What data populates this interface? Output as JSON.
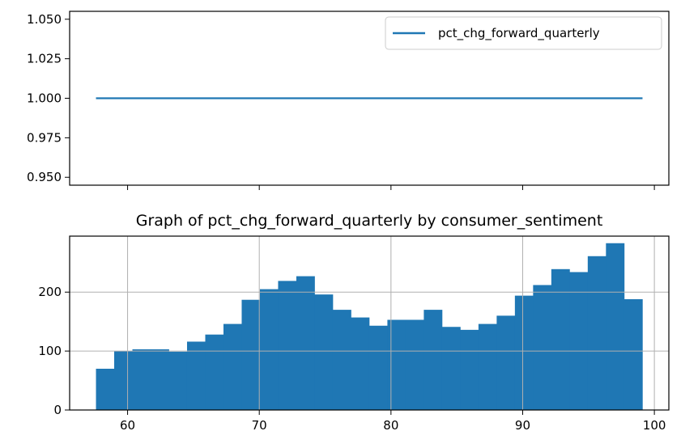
{
  "chart_data": [
    {
      "type": "line",
      "title": "",
      "xlabel": "",
      "ylabel": "",
      "xlim": [
        55.6,
        101.1
      ],
      "ylim": [
        0.945,
        1.055
      ],
      "yticks": [
        "0.950",
        "0.975",
        "1.000",
        "1.025",
        "1.050"
      ],
      "ytick_values": [
        0.95,
        0.975,
        1.0,
        1.025,
        1.05
      ],
      "xtick_values": [
        60,
        70,
        80,
        90,
        100
      ],
      "shared_x_tick_labels_hidden": true,
      "legend": {
        "placement": "upper right",
        "entries": [
          "pct_chg_forward_quarterly"
        ]
      },
      "series": [
        {
          "name": "pct_chg_forward_quarterly",
          "color": "#1f77b4",
          "x": [
            57.6,
            99.1
          ],
          "y": [
            1.0,
            1.0
          ]
        }
      ],
      "grid": false
    },
    {
      "type": "bar",
      "subtype": "histogram",
      "title": "Graph of pct_chg_forward_quarterly by consumer_sentiment",
      "xlabel": "",
      "ylabel": "",
      "xlim": [
        55.6,
        101.1
      ],
      "ylim": [
        0,
        295
      ],
      "xticks": [
        "60",
        "70",
        "80",
        "90",
        "100"
      ],
      "xtick_values": [
        60,
        70,
        80,
        90,
        100
      ],
      "yticks": [
        "0",
        "100",
        "200"
      ],
      "ytick_values": [
        0,
        100,
        200
      ],
      "bin_start": 57.6,
      "bin_width": 1.383,
      "values": [
        70,
        100,
        103,
        103,
        99,
        116,
        128,
        146,
        187,
        205,
        219,
        227,
        196,
        170,
        157,
        143,
        153,
        153,
        170,
        141,
        136,
        146,
        160,
        194,
        212,
        239,
        234,
        261,
        283,
        188
      ],
      "color": "#1f77b4",
      "grid": true
    }
  ]
}
